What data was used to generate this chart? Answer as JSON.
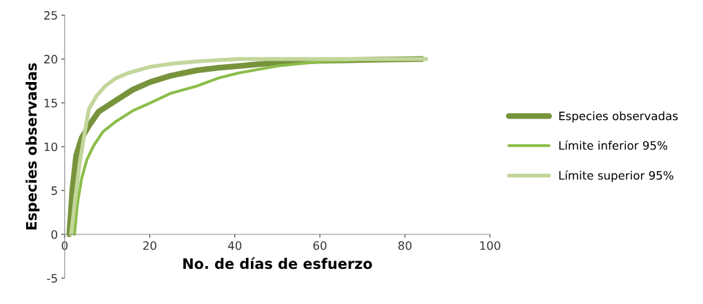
{
  "chart_data": {
    "type": "line",
    "xlabel": "No. de días de esfuerzo",
    "ylabel": "Especies observadas",
    "xlim": [
      0,
      100
    ],
    "xticks": [
      0,
      20,
      40,
      60,
      80,
      100
    ],
    "ylim": [
      -5,
      25
    ],
    "yticks": [
      -5,
      0,
      5,
      10,
      15,
      20,
      25
    ],
    "grid": false,
    "legend": "right",
    "marker": "none",
    "line_style": "solid",
    "series": [
      {
        "name": "Especies observadas",
        "color": "#77933c",
        "x": [
          1.1,
          1.8,
          2.7,
          4,
          5.7,
          8,
          12.1,
          16,
          20.2,
          25,
          31,
          36,
          40.8,
          50,
          60,
          70,
          84
        ],
        "values": [
          0,
          5,
          9,
          11,
          12.4,
          14,
          15.3,
          16.5,
          17.4,
          18.1,
          18.7,
          19,
          19.2,
          19.6,
          19.8,
          19.9,
          20
        ]
      },
      {
        "name": "Límite inferior 95%",
        "color": "#8cbd4a",
        "x": [
          2.3,
          3,
          4,
          5.2,
          6.8,
          9,
          12.1,
          16,
          20.2,
          25,
          31,
          36,
          40.8,
          50,
          60,
          70,
          84
        ],
        "values": [
          0,
          3.5,
          6.4,
          8.5,
          10.1,
          11.7,
          12.9,
          14.1,
          15,
          16.1,
          16.9,
          17.8,
          18.4,
          19.2,
          19.7,
          19.9,
          20
        ]
      },
      {
        "name": "Límite superior 95%",
        "color": "#c3d69b",
        "x": [
          1.5,
          2,
          2.4,
          3.5,
          4.7,
          5.7,
          7.5,
          9.5,
          12,
          14.9,
          20,
          25.7,
          33,
          41,
          60,
          85
        ],
        "values": [
          0,
          2,
          3.8,
          8,
          11.6,
          14.3,
          15.8,
          16.9,
          17.8,
          18.4,
          19.1,
          19.5,
          19.8,
          20,
          20,
          20
        ]
      }
    ]
  }
}
